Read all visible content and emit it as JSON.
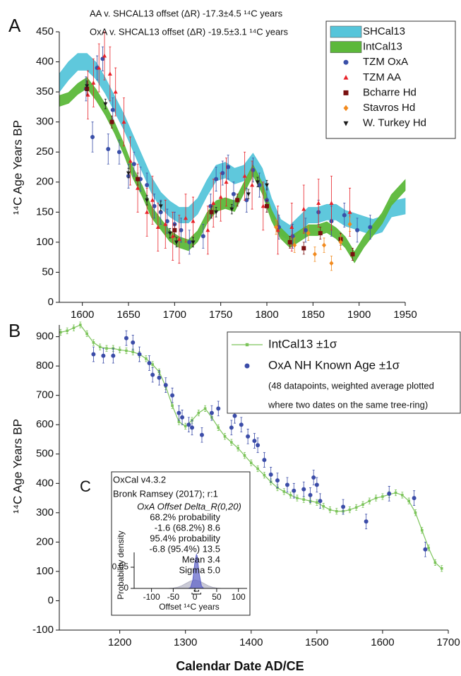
{
  "chart_data": [
    {
      "type": "scatter",
      "panel_label": "A",
      "annotations": [
        "AA v. SHCAL13 offset (ΔR) -17.3±4.5 ¹⁴C years",
        "OxA v. SHCAL13 offset (ΔR) -19.5±3.1 ¹⁴C years"
      ],
      "ylabel": "¹⁴C Age Years BP",
      "xlim": [
        1575,
        1950
      ],
      "xticks": [
        1600,
        1650,
        1700,
        1750,
        1800,
        1850,
        1900,
        1950
      ],
      "ylim": [
        0,
        450
      ],
      "yticks": [
        0,
        50,
        100,
        150,
        200,
        250,
        300,
        350,
        400,
        450
      ],
      "legend": "upper right",
      "grid": false,
      "series": [
        {
          "name": "SHCal13",
          "color": "#56c5da",
          "marker": "band",
          "x": [
            1575,
            1585,
            1595,
            1605,
            1615,
            1625,
            1635,
            1645,
            1655,
            1665,
            1675,
            1685,
            1695,
            1705,
            1715,
            1725,
            1735,
            1745,
            1755,
            1765,
            1775,
            1785,
            1795,
            1805,
            1815,
            1825,
            1835,
            1845,
            1855,
            1865,
            1875,
            1885,
            1895,
            1905,
            1915,
            1925,
            1935,
            1950
          ],
          "values": [
            365,
            385,
            400,
            400,
            385,
            360,
            330,
            300,
            265,
            230,
            195,
            170,
            155,
            145,
            145,
            160,
            190,
            215,
            220,
            210,
            215,
            235,
            210,
            160,
            125,
            115,
            130,
            145,
            145,
            150,
            150,
            140,
            135,
            130,
            125,
            130,
            155,
            160
          ],
          "errors": [
            15,
            15,
            14,
            14,
            14,
            13,
            13,
            13,
            13,
            13,
            13,
            13,
            13,
            13,
            13,
            13,
            13,
            13,
            13,
            13,
            13,
            13,
            13,
            13,
            13,
            13,
            13,
            13,
            13,
            13,
            13,
            13,
            13,
            13,
            13,
            13,
            13,
            13
          ]
        },
        {
          "name": "IntCal13",
          "color": "#5cb83a",
          "marker": "band",
          "x": [
            1575,
            1585,
            1595,
            1605,
            1615,
            1625,
            1635,
            1645,
            1655,
            1665,
            1675,
            1685,
            1695,
            1705,
            1715,
            1725,
            1735,
            1745,
            1755,
            1765,
            1775,
            1785,
            1795,
            1805,
            1815,
            1825,
            1835,
            1845,
            1855,
            1865,
            1875,
            1885,
            1895,
            1905,
            1915,
            1925,
            1935,
            1950
          ],
          "values": [
            335,
            340,
            355,
            365,
            345,
            320,
            290,
            255,
            215,
            185,
            150,
            130,
            110,
            100,
            95,
            110,
            140,
            160,
            165,
            160,
            190,
            220,
            190,
            145,
            115,
            100,
            110,
            120,
            120,
            125,
            115,
            100,
            75,
            100,
            120,
            140,
            170,
            195
          ],
          "errors": [
            9,
            9,
            9,
            9,
            9,
            9,
            9,
            9,
            9,
            9,
            9,
            9,
            9,
            9,
            9,
            9,
            9,
            9,
            9,
            9,
            9,
            9,
            9,
            9,
            9,
            9,
            9,
            9,
            9,
            9,
            9,
            9,
            9,
            9,
            9,
            9,
            9,
            9
          ]
        },
        {
          "name": "TZM OxA",
          "color": "#3a4fa8",
          "marker": "circle",
          "x": [
            1604,
            1611,
            1616,
            1622,
            1628,
            1633,
            1640,
            1650,
            1656,
            1663,
            1670,
            1678,
            1685,
            1692,
            1700,
            1707,
            1716,
            1731,
            1739,
            1745,
            1752,
            1758,
            1764,
            1778,
            1785,
            1792,
            1800,
            1813,
            1828,
            1842,
            1856,
            1870,
            1884,
            1898,
            1912
          ],
          "values": [
            355,
            275,
            390,
            405,
            255,
            320,
            250,
            210,
            230,
            205,
            195,
            160,
            150,
            135,
            130,
            120,
            100,
            110,
            160,
            205,
            215,
            225,
            180,
            170,
            220,
            195,
            170,
            125,
            110,
            120,
            150,
            135,
            145,
            120,
            125
          ],
          "errors": [
            20,
            25,
            20,
            20,
            25,
            20,
            20,
            20,
            20,
            20,
            20,
            20,
            20,
            20,
            20,
            20,
            20,
            20,
            20,
            20,
            20,
            20,
            20,
            20,
            20,
            20,
            20,
            20,
            20,
            20,
            20,
            25,
            20,
            20,
            20
          ]
        },
        {
          "name": "TZM AA",
          "color": "#e8232a",
          "marker": "triangle-up",
          "x": [
            1606,
            1612,
            1618,
            1624,
            1630,
            1636,
            1645,
            1652,
            1660,
            1670,
            1676,
            1682,
            1690,
            1698,
            1705,
            1712,
            1720,
            1736,
            1742,
            1750,
            1756,
            1776,
            1784,
            1796,
            1812,
            1827,
            1840,
            1856,
            1870,
            1890
          ],
          "values": [
            345,
            365,
            390,
            410,
            380,
            350,
            300,
            235,
            190,
            150,
            170,
            125,
            130,
            110,
            105,
            140,
            135,
            120,
            165,
            175,
            200,
            210,
            195,
            160,
            120,
            125,
            155,
            165,
            165,
            150
          ],
          "errors": [
            40,
            40,
            40,
            40,
            45,
            40,
            40,
            40,
            40,
            40,
            40,
            40,
            40,
            40,
            40,
            40,
            40,
            40,
            40,
            40,
            40,
            40,
            40,
            40,
            40,
            40,
            40,
            40,
            45,
            40
          ]
        },
        {
          "name": "Bcharre Hd",
          "color": "#7a1010",
          "marker": "square",
          "x": [
            1605,
            1632,
            1660,
            1700,
            1740,
            1768,
            1800,
            1825,
            1840,
            1858,
            1880,
            1893
          ],
          "values": [
            355,
            300,
            205,
            120,
            150,
            170,
            160,
            100,
            90,
            115,
            105,
            80
          ],
          "errors": [
            10,
            10,
            10,
            10,
            10,
            10,
            10,
            10,
            10,
            10,
            10,
            10
          ]
        },
        {
          "name": "Stavros Hd",
          "color": "#f28a1e",
          "marker": "diamond",
          "x": [
            1810,
            1830,
            1845,
            1852,
            1862,
            1870,
            1880,
            1890
          ],
          "values": [
            125,
            95,
            115,
            80,
            95,
            65,
            100,
            130
          ],
          "errors": [
            12,
            12,
            12,
            12,
            12,
            12,
            12,
            12
          ]
        },
        {
          "name": "W. Turkey Hd",
          "color": "#1a1a1a",
          "marker": "triangle-down",
          "x": [
            1605,
            1625,
            1650,
            1670,
            1685,
            1695,
            1702,
            1720,
            1745,
            1762,
            1780,
            1790,
            1800
          ],
          "values": [
            360,
            330,
            215,
            170,
            160,
            115,
            100,
            100,
            150,
            155,
            180,
            200,
            195
          ],
          "errors": [
            8,
            8,
            8,
            8,
            8,
            8,
            8,
            8,
            8,
            8,
            8,
            8,
            8
          ]
        }
      ]
    },
    {
      "type": "scatter",
      "panel_label": "B",
      "ylabel": "¹⁴C Age Years BP",
      "xlabel": "Calendar Date AD/CE",
      "xlim": [
        1108,
        1700
      ],
      "xticks": [
        1200,
        1300,
        1400,
        1500,
        1600,
        1700
      ],
      "ylim": [
        -100,
        940
      ],
      "yticks": [
        -100,
        0,
        100,
        200,
        300,
        400,
        500,
        600,
        700,
        800,
        900
      ],
      "legend": "upper right",
      "grid": false,
      "legend_note": [
        "(48 datapoints, weighted average plotted",
        "where two dates on the same tree-ring)"
      ],
      "series": [
        {
          "name": "IntCal13 ±1σ",
          "color": "#7cc45a",
          "marker": "line-square",
          "x": [
            1110,
            1120,
            1130,
            1140,
            1150,
            1160,
            1170,
            1180,
            1190,
            1200,
            1210,
            1220,
            1230,
            1240,
            1250,
            1260,
            1270,
            1280,
            1290,
            1300,
            1310,
            1320,
            1330,
            1340,
            1350,
            1360,
            1370,
            1380,
            1390,
            1400,
            1410,
            1420,
            1430,
            1440,
            1450,
            1460,
            1470,
            1480,
            1490,
            1500,
            1510,
            1520,
            1530,
            1540,
            1550,
            1560,
            1570,
            1580,
            1590,
            1600,
            1610,
            1620,
            1630,
            1640,
            1650,
            1660,
            1670,
            1680,
            1690
          ],
          "values": [
            915,
            920,
            930,
            940,
            910,
            880,
            865,
            860,
            860,
            855,
            852,
            848,
            840,
            825,
            805,
            780,
            730,
            665,
            610,
            595,
            615,
            640,
            655,
            625,
            590,
            560,
            540,
            520,
            495,
            470,
            450,
            428,
            405,
            385,
            372,
            360,
            350,
            345,
            340,
            335,
            322,
            310,
            305,
            305,
            310,
            318,
            328,
            340,
            350,
            355,
            362,
            368,
            360,
            340,
            300,
            240,
            180,
            130,
            110
          ],
          "errors": [
            10,
            10,
            10,
            10,
            10,
            10,
            10,
            10,
            10,
            10,
            10,
            10,
            10,
            10,
            10,
            10,
            10,
            10,
            10,
            10,
            10,
            10,
            10,
            10,
            10,
            10,
            10,
            10,
            10,
            10,
            10,
            10,
            10,
            10,
            10,
            10,
            10,
            10,
            10,
            10,
            10,
            10,
            10,
            10,
            10,
            10,
            10,
            10,
            10,
            10,
            10,
            10,
            10,
            10,
            10,
            10,
            10,
            10,
            10
          ]
        },
        {
          "name": "OxA NH Known Age ±1σ",
          "color": "#3b4ca8",
          "marker": "circle",
          "x": [
            1160,
            1175,
            1190,
            1210,
            1220,
            1230,
            1245,
            1250,
            1260,
            1270,
            1280,
            1290,
            1295,
            1305,
            1310,
            1325,
            1340,
            1350,
            1370,
            1375,
            1385,
            1395,
            1405,
            1410,
            1420,
            1430,
            1440,
            1455,
            1465,
            1480,
            1490,
            1495,
            1500,
            1505,
            1540,
            1575,
            1610,
            1648,
            1665
          ],
          "values": [
            840,
            835,
            835,
            895,
            880,
            840,
            810,
            770,
            760,
            735,
            700,
            640,
            625,
            600,
            590,
            565,
            640,
            655,
            590,
            630,
            600,
            560,
            545,
            530,
            480,
            430,
            410,
            395,
            375,
            380,
            360,
            420,
            395,
            340,
            320,
            270,
            365,
            350,
            175
          ],
          "errors": [
            25,
            25,
            25,
            25,
            25,
            25,
            25,
            25,
            25,
            25,
            25,
            25,
            25,
            25,
            25,
            25,
            25,
            25,
            25,
            25,
            25,
            25,
            25,
            25,
            25,
            25,
            25,
            25,
            25,
            25,
            25,
            25,
            25,
            25,
            25,
            25,
            25,
            25,
            25
          ]
        }
      ]
    },
    {
      "type": "line",
      "panel_label": "C",
      "header": [
        "OxCal v4.3.2",
        "Bronk Ramsey (2017); r:1"
      ],
      "title": "OxA Offset Delta_R(0,20)",
      "annotations": [
        "68.2% probability",
        "-1.6 (68.2%) 8.6",
        "95.4% probability",
        "-6.8 (95.4%) 13.5",
        "Mean 3.4",
        "Sigma 5.0"
      ],
      "xlabel": "Offset ¹⁴C years",
      "ylabel": "Probability density",
      "xlim": [
        -140,
        120
      ],
      "xticks": [
        -100,
        -50,
        0,
        50,
        100
      ],
      "ylim": [
        0,
        0.085
      ],
      "yticks": [
        0,
        0.05
      ],
      "grid": false,
      "ranges": [
        {
          "from": -1.6,
          "to": 8.6
        },
        {
          "from": -6.8,
          "to": 13.5
        }
      ],
      "series": [
        {
          "color": "#b4b4c4",
          "marker": "area",
          "x": [
            -120,
            -110,
            -100,
            -90,
            -80,
            -70,
            -60,
            -50,
            -40,
            -30,
            -20,
            -10,
            0,
            10,
            20,
            30,
            40,
            50,
            60,
            70,
            80,
            90,
            100,
            110,
            120
          ],
          "values": [
            0,
            0,
            0,
            0,
            0,
            0.0001,
            0.0002,
            0.0009,
            0.0027,
            0.0065,
            0.0121,
            0.0176,
            0.0199,
            0.0176,
            0.0121,
            0.0065,
            0.0027,
            0.0009,
            0.0002,
            0.0001,
            0,
            0,
            0,
            0,
            0
          ]
        },
        {
          "color": "#5b5fc7",
          "marker": "area",
          "x": [
            -20,
            -15,
            -10,
            -5,
            0,
            3.4,
            5,
            10,
            15,
            20,
            25
          ],
          "values": [
            0,
            0.0001,
            0.0022,
            0.0195,
            0.0633,
            0.0798,
            0.0758,
            0.0334,
            0.0054,
            0.0003,
            0
          ]
        }
      ]
    }
  ]
}
